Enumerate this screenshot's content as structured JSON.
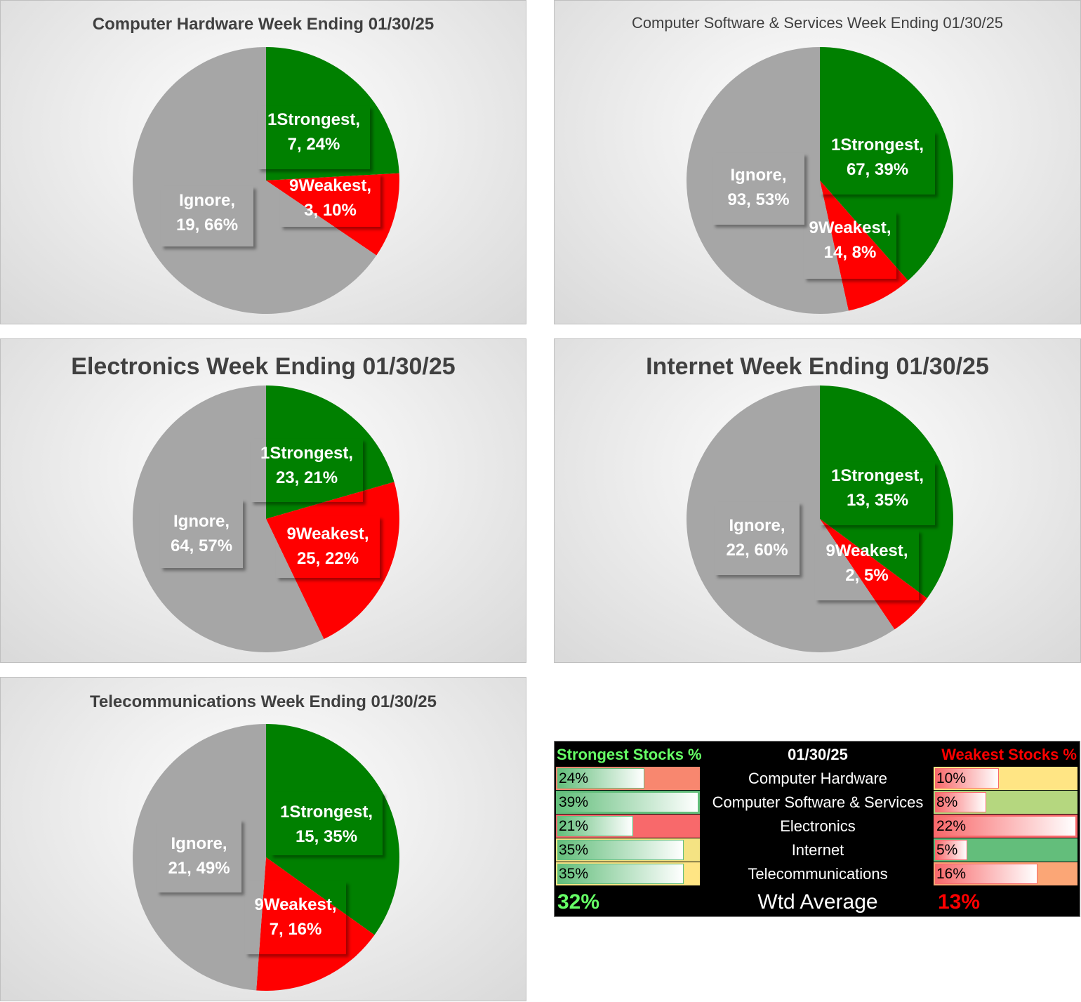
{
  "chart_data": [
    {
      "type": "pie",
      "title": "Computer Hardware Week Ending 01/30/25",
      "slices": [
        {
          "name": "1Strongest",
          "value": 7,
          "percent": "24%",
          "color": "#008000"
        },
        {
          "name": "9Weakest",
          "value": 3,
          "percent": "10%",
          "color": "#ff0000"
        },
        {
          "name": "Ignore",
          "value": 19,
          "percent": "66%",
          "color": "#a6a6a6"
        }
      ]
    },
    {
      "type": "pie",
      "title": "Computer Software & Services Week Ending 01/30/25",
      "slices": [
        {
          "name": "1Strongest",
          "value": 67,
          "percent": "39%",
          "color": "#008000"
        },
        {
          "name": "9Weakest",
          "value": 14,
          "percent": "8%",
          "color": "#ff0000"
        },
        {
          "name": "Ignore",
          "value": 93,
          "percent": "53%",
          "color": "#a6a6a6"
        }
      ]
    },
    {
      "type": "pie",
      "title": "Electronics Week Ending 01/30/25",
      "slices": [
        {
          "name": "1Strongest",
          "value": 23,
          "percent": "21%",
          "color": "#008000"
        },
        {
          "name": "9Weakest",
          "value": 25,
          "percent": "22%",
          "color": "#ff0000"
        },
        {
          "name": "Ignore",
          "value": 64,
          "percent": "57%",
          "color": "#a6a6a6"
        }
      ]
    },
    {
      "type": "pie",
      "title": "Internet Week Ending 01/30/25",
      "slices": [
        {
          "name": "1Strongest",
          "value": 13,
          "percent": "35%",
          "color": "#008000"
        },
        {
          "name": "9Weakest",
          "value": 2,
          "percent": "5%",
          "color": "#ff0000"
        },
        {
          "name": "Ignore",
          "value": 22,
          "percent": "60%",
          "color": "#a6a6a6"
        }
      ]
    },
    {
      "type": "pie",
      "title": "Telecommunications Week Ending 01/30/25",
      "slices": [
        {
          "name": "1Strongest",
          "value": 15,
          "percent": "35%",
          "color": "#008000"
        },
        {
          "name": "9Weakest",
          "value": 7,
          "percent": "16%",
          "color": "#ff0000"
        },
        {
          "name": "Ignore",
          "value": 21,
          "percent": "49%",
          "color": "#a6a6a6"
        }
      ]
    },
    {
      "type": "table",
      "date": "01/30/25",
      "strong_header": "Strongest Stocks %",
      "weak_header": "Weakest Stocks %",
      "avg_label": "Wtd Average",
      "strong_avg": "32%",
      "weak_avg": "13%",
      "colors": {
        "strong_header": "#66ff66",
        "weak_header": "#ff0000"
      },
      "rows": [
        {
          "name": "Computer Hardware",
          "strong": 24,
          "strong_label": "24%",
          "weak": 10,
          "weak_label": "10%",
          "strong_bg": "#f8876f",
          "weak_bg": "#ffe584"
        },
        {
          "name": "Computer Software & Services",
          "strong": 39,
          "strong_label": "39%",
          "weak": 8,
          "weak_label": "8%",
          "strong_bg": "#63be7b",
          "weak_bg": "#b5d77f"
        },
        {
          "name": "Electronics",
          "strong": 21,
          "strong_label": "21%",
          "weak": 22,
          "weak_label": "22%",
          "strong_bg": "#f8696b",
          "weak_bg": "#f8696b"
        },
        {
          "name": "Internet",
          "strong": 35,
          "strong_label": "35%",
          "weak": 5,
          "weak_label": "5%",
          "strong_bg": "#f4e383",
          "weak_bg": "#63be7b"
        },
        {
          "name": "Telecommunications",
          "strong": 35,
          "strong_label": "35%",
          "weak": 16,
          "weak_label": "16%",
          "strong_bg": "#ffe584",
          "weak_bg": "#fba676"
        }
      ]
    }
  ]
}
